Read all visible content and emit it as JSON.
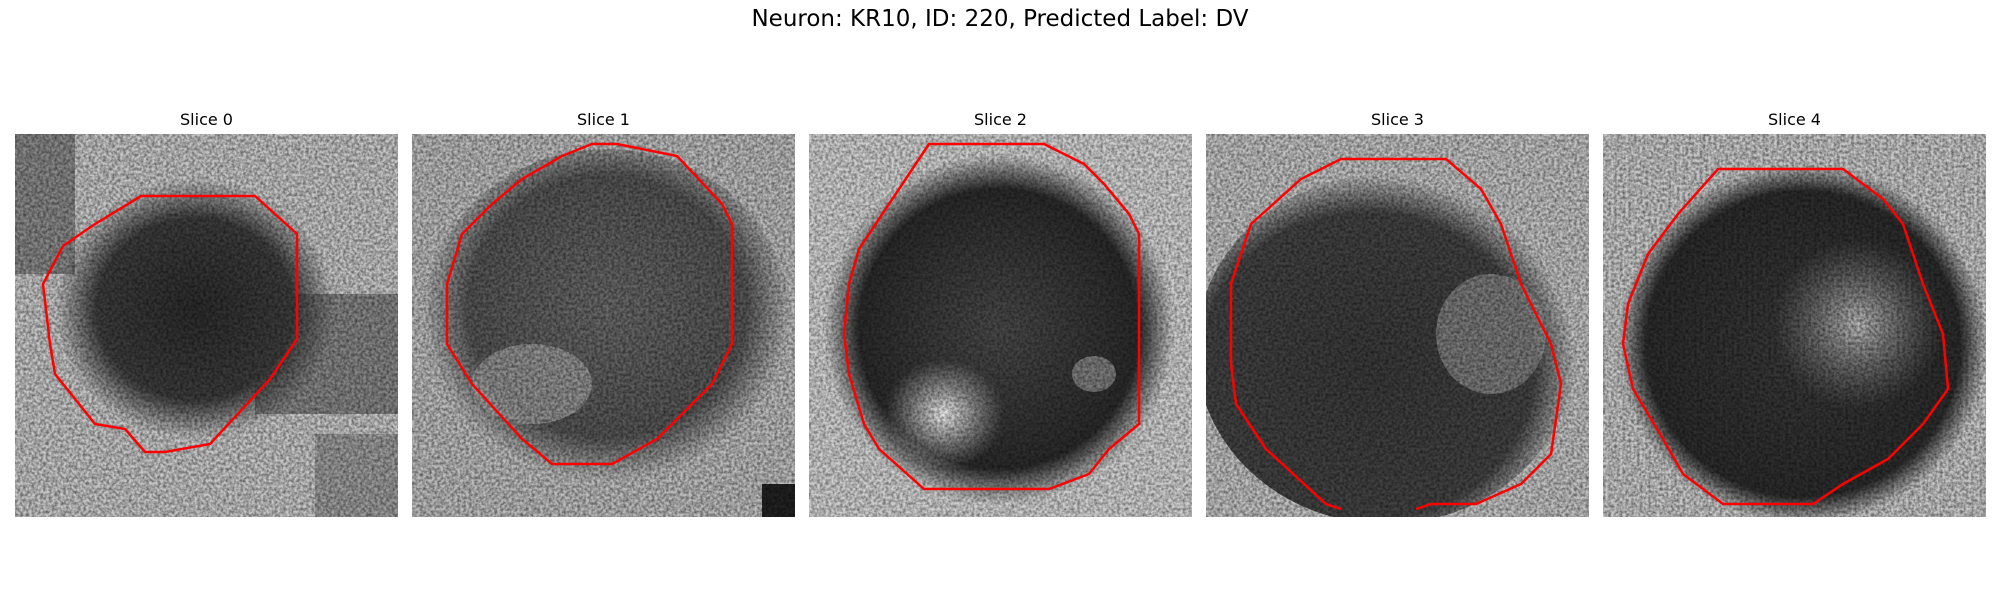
{
  "figure": {
    "title": "Neuron: KR10, ID: 220, Predicted Label: DV",
    "contour_color": "#ff0000"
  },
  "panels": [
    {
      "title": "Slice 0"
    },
    {
      "title": "Slice 1"
    },
    {
      "title": "Slice 2"
    },
    {
      "title": "Slice 3"
    },
    {
      "title": "Slice 4"
    }
  ]
}
